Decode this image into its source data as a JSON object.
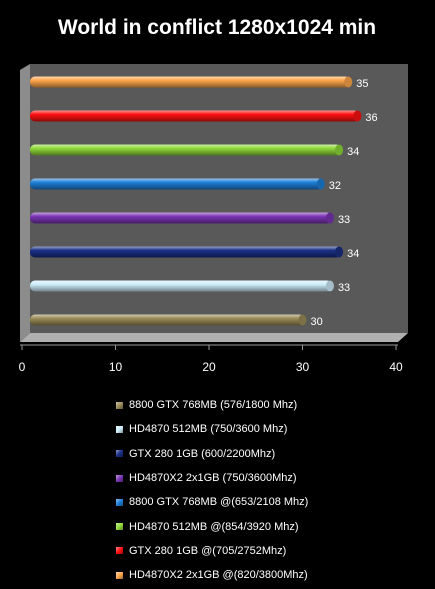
{
  "chart_data": {
    "type": "bar",
    "orientation": "horizontal",
    "title": "World in conflict 1280x1024 min",
    "xlabel": "",
    "ylabel": "",
    "xlim": [
      0,
      40
    ],
    "xticks": [
      0,
      10,
      20,
      30,
      40
    ],
    "grid": false,
    "legend_position": "bottom",
    "series": [
      {
        "name": "8800 GTX 768MB (576/1800 Mhz)",
        "value": 30,
        "label": "30",
        "color": "#9b8c58"
      },
      {
        "name": "HD4870 512MB (750/3600 Mhz)",
        "value": 33,
        "label": "33",
        "color": "#cfeefb"
      },
      {
        "name": "GTX 280 1GB (600/2200Mhz)",
        "value": 34,
        "label": "34",
        "color": "#1a2f86"
      },
      {
        "name": "HD4870X2 2x1GB (750/3600Mhz)",
        "value": 33,
        "label": "33",
        "color": "#7b35b5"
      },
      {
        "name": "8800 GTX 768MB @(653/2108 Mhz)",
        "value": 32,
        "label": "32",
        "color": "#1e7fd8"
      },
      {
        "name": "HD4870 512MB @(854/3920 Mhz)",
        "value": 34,
        "label": "34",
        "color": "#8fd93a"
      },
      {
        "name": "GTX 280 1GB @(705/2752Mhz)",
        "value": 36,
        "label": "36",
        "color": "#ff1010"
      },
      {
        "name": "HD4870X2 2x1GB @(820/3800Mhz)",
        "value": 35,
        "label": "35",
        "color": "#ffa64c"
      }
    ]
  }
}
